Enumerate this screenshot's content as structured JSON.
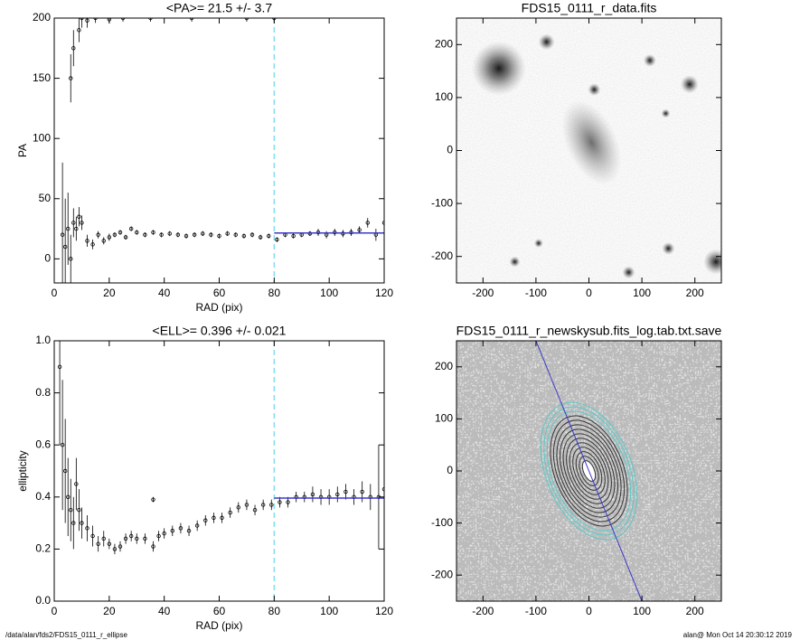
{
  "chart_data": [
    {
      "type": "scatter",
      "title": "<PA>=  21.5 +/-   3.7",
      "x_label": "RAD (pix)",
      "y_label": "PA",
      "xlim": [
        0,
        120
      ],
      "ylim": [
        -20,
        200
      ],
      "xticks": [
        0,
        20,
        40,
        60,
        80,
        100,
        120
      ],
      "yticks": [
        0,
        50,
        100,
        150,
        200
      ],
      "x": [
        3,
        4,
        5,
        6,
        7,
        8,
        9,
        10,
        12,
        14,
        16,
        18,
        20,
        22,
        24,
        26,
        28,
        30,
        33,
        36,
        39,
        42,
        45,
        48,
        51,
        54,
        57,
        60,
        63,
        66,
        69,
        72,
        75,
        78,
        81,
        84,
        87,
        90,
        93,
        96,
        99,
        102,
        105,
        108,
        111,
        114,
        117,
        120,
        6,
        7,
        9,
        10,
        12,
        15,
        20,
        25,
        35,
        50,
        70,
        80
      ],
      "values": [
        20,
        10,
        25,
        0,
        30,
        25,
        35,
        30,
        15,
        12,
        20,
        15,
        18,
        20,
        22,
        18,
        25,
        22,
        20,
        22,
        20,
        21,
        20,
        19,
        20,
        21,
        20,
        19,
        21,
        20,
        19,
        20,
        18,
        19,
        16,
        20,
        19,
        20,
        21,
        22,
        20,
        22,
        21,
        22,
        24,
        30,
        20,
        30,
        150,
        175,
        190,
        200,
        198,
        200,
        199,
        200,
        200,
        200,
        200,
        200
      ],
      "errors": [
        60,
        40,
        30,
        20,
        12,
        10,
        8,
        6,
        5,
        4,
        3,
        3,
        3,
        2,
        2,
        2,
        2,
        2,
        2,
        2,
        2,
        2,
        2,
        2,
        2,
        2,
        2,
        2,
        2,
        2,
        2,
        2,
        2,
        2,
        2,
        2,
        2,
        2,
        2,
        3,
        3,
        3,
        3,
        3,
        3,
        4,
        5,
        6,
        20,
        15,
        10,
        8,
        6,
        4,
        3,
        3,
        3,
        3,
        3,
        3
      ],
      "color": "#000000",
      "fit_value": 21.5,
      "fit_xrange": [
        80,
        120
      ],
      "fit_color": "#3a3ac8",
      "cutoff_x": 80,
      "cutoff_color": "#7fdfef"
    },
    {
      "type": "image",
      "title": "FDS15_0111_r_data.fits",
      "xlim": [
        -250,
        250
      ],
      "ylim": [
        -250,
        250
      ],
      "xticks": [
        -200,
        -100,
        0,
        100,
        200
      ],
      "yticks": [
        -200,
        -100,
        0,
        100,
        200
      ]
    },
    {
      "type": "scatter",
      "title": "<ELL>= 0.396 +/-  0.021",
      "x_label": "RAD (pix)",
      "y_label": "ellipticity",
      "xlim": [
        0,
        120
      ],
      "ylim": [
        0,
        1
      ],
      "xticks": [
        0,
        20,
        40,
        60,
        80,
        100,
        120
      ],
      "yticks": [
        {
          "value": 0,
          "label": "0.0"
        },
        0.2,
        0.4,
        0.6,
        0.8,
        {
          "value": 1,
          "label": "1.0"
        }
      ],
      "x": [
        2,
        3,
        4,
        5,
        6,
        7,
        8,
        9,
        10,
        12,
        14,
        16,
        18,
        20,
        22,
        24,
        26,
        28,
        30,
        33,
        36,
        38,
        40,
        43,
        46,
        49,
        52,
        55,
        58,
        61,
        64,
        67,
        70,
        73,
        76,
        79,
        82,
        85,
        88,
        91,
        94,
        97,
        100,
        103,
        106,
        109,
        112,
        115,
        118,
        120,
        36
      ],
      "values": [
        0.9,
        0.6,
        0.5,
        0.4,
        0.35,
        0.3,
        0.45,
        0.35,
        0.3,
        0.28,
        0.25,
        0.22,
        0.24,
        0.22,
        0.2,
        0.21,
        0.24,
        0.25,
        0.24,
        0.24,
        0.21,
        0.25,
        0.26,
        0.27,
        0.28,
        0.27,
        0.29,
        0.31,
        0.32,
        0.32,
        0.34,
        0.36,
        0.37,
        0.35,
        0.37,
        0.37,
        0.38,
        0.38,
        0.4,
        0.4,
        0.41,
        0.4,
        0.4,
        0.41,
        0.42,
        0.4,
        0.42,
        0.4,
        0.4,
        0.43,
        0.39
      ],
      "errors": [
        0.3,
        0.25,
        0.2,
        0.15,
        0.12,
        0.1,
        0.1,
        0.08,
        0.06,
        0.05,
        0.04,
        0.03,
        0.03,
        0.02,
        0.02,
        0.02,
        0.02,
        0.02,
        0.02,
        0.02,
        0.02,
        0.02,
        0.02,
        0.02,
        0.02,
        0.02,
        0.02,
        0.02,
        0.02,
        0.02,
        0.02,
        0.02,
        0.02,
        0.02,
        0.02,
        0.02,
        0.02,
        0.02,
        0.02,
        0.02,
        0.03,
        0.03,
        0.03,
        0.03,
        0.03,
        0.03,
        0.04,
        0.05,
        0.2,
        0.05,
        0.01
      ],
      "color": "#000000",
      "fit_value": 0.396,
      "fit_xrange": [
        80,
        120
      ],
      "fit_color": "#3a3ac8",
      "cutoff_x": 80,
      "cutoff_color": "#7fdfef"
    },
    {
      "type": "image",
      "title": "FDS15_0111_r_newskysub.fits_log.tab.txt.save",
      "xlim": [
        -250,
        250
      ],
      "ylim": [
        -250,
        250
      ],
      "xticks": [
        -200,
        -100,
        0,
        100,
        200
      ],
      "yticks": [
        -200,
        -100,
        0,
        100,
        200
      ]
    }
  ],
  "footer_left": "/data/alan/fds2/FDS15_0111_r_ellipse",
  "footer_right": "alan@  Mon Oct 14 20:30:12 2019"
}
